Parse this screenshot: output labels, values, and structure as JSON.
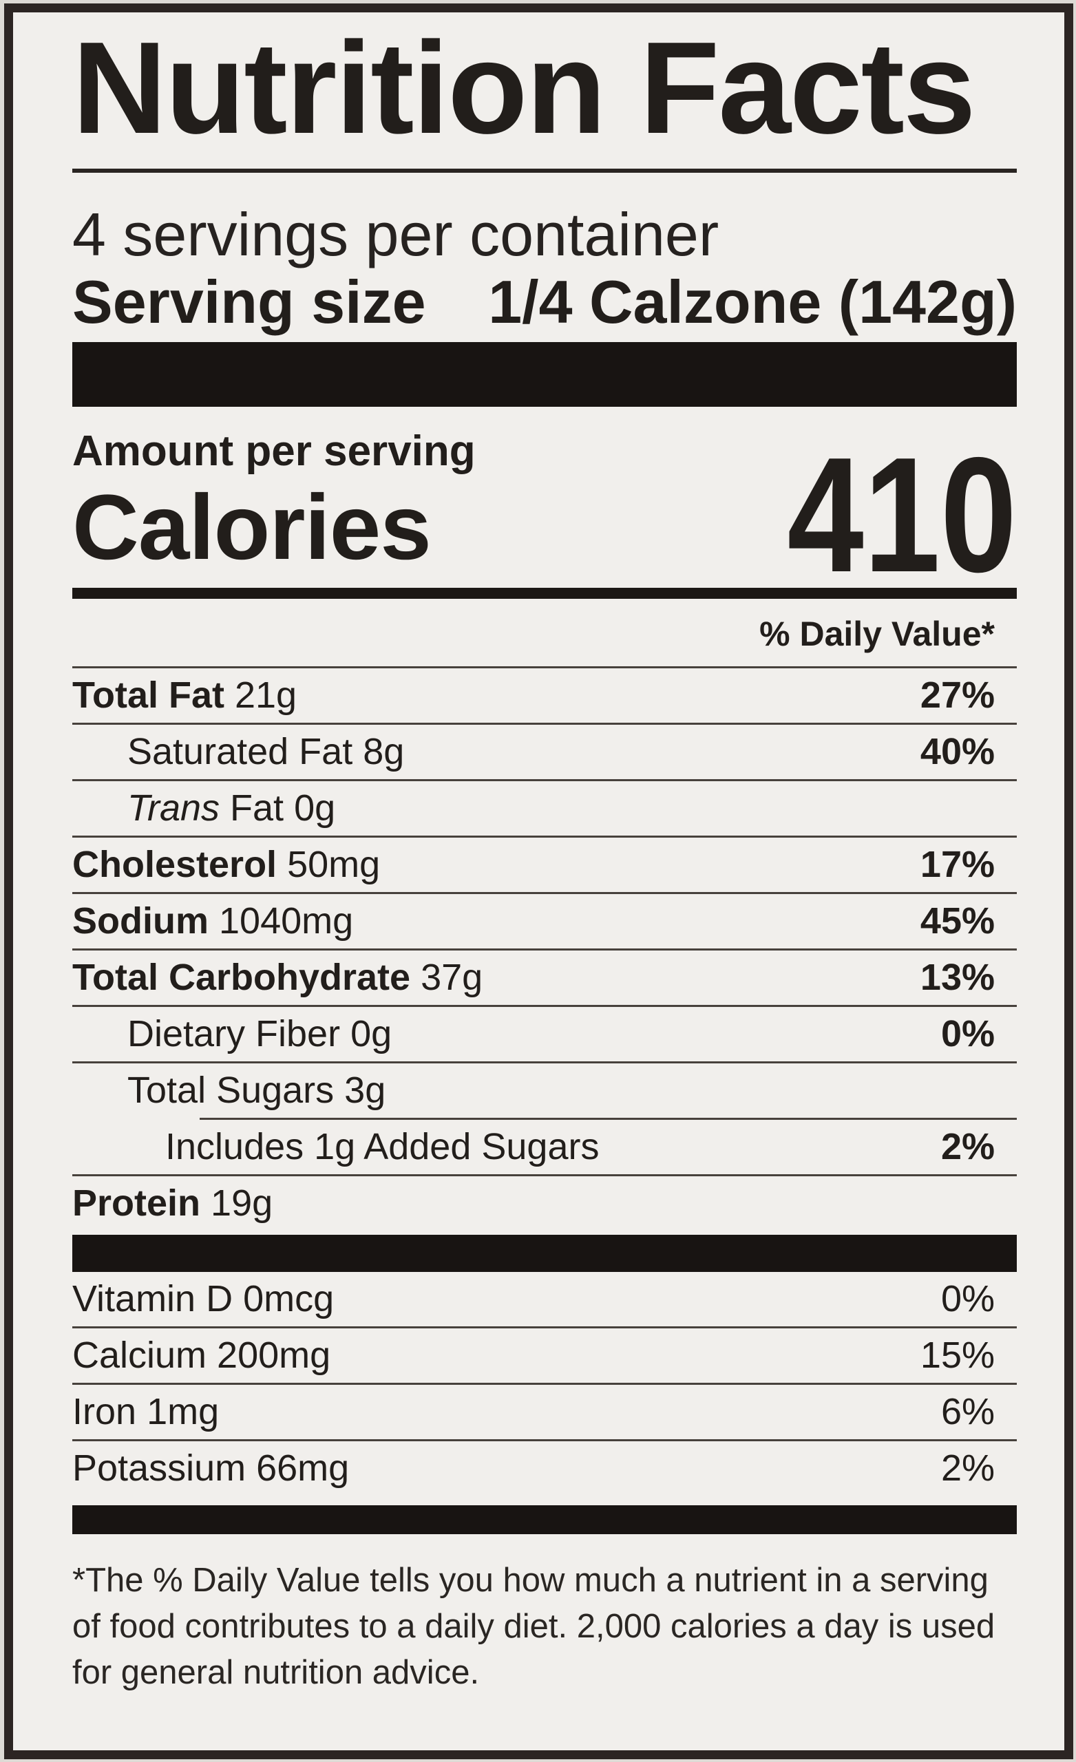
{
  "label": {
    "title": "Nutrition Facts",
    "servings_per_container": "4 servings per container",
    "serving_size_label": "Serving size",
    "serving_size_value": "1/4 Calzone (142g)",
    "amount_per_serving": "Amount per serving",
    "calories_label": "Calories",
    "calories_value": "410",
    "daily_value_header": "% Daily Value*",
    "nutrients": [
      {
        "name": "Total Fat",
        "amount": "21g",
        "dv": "27%",
        "style": "major",
        "level": 0
      },
      {
        "name": "Saturated Fat",
        "amount": "8g",
        "dv": "40%",
        "style": "sub",
        "level": 1
      },
      {
        "name": "Fat",
        "name_italic_prefix": "Trans",
        "amount": "0g",
        "dv": "",
        "style": "sub",
        "level": 1
      },
      {
        "name": "Cholesterol",
        "amount": "50mg",
        "dv": "17%",
        "style": "major",
        "level": 0
      },
      {
        "name": "Sodium",
        "amount": "1040mg",
        "dv": "45%",
        "style": "major",
        "level": 0
      },
      {
        "name": "Total Carbohydrate",
        "amount": "37g",
        "dv": "13%",
        "style": "major",
        "level": 0
      },
      {
        "name": "Dietary Fiber",
        "amount": "0g",
        "dv": "0%",
        "style": "sub",
        "level": 1
      },
      {
        "name": "Total Sugars",
        "amount": "3g",
        "dv": "",
        "style": "sub",
        "level": 1
      },
      {
        "name": "Includes 1g Added Sugars",
        "amount": "",
        "dv": "2%",
        "style": "sub",
        "level": 2,
        "rule_indent": true
      },
      {
        "name": "Protein",
        "amount": "19g",
        "dv": "",
        "style": "major",
        "level": 0
      }
    ],
    "micronutrients": [
      {
        "name": "Vitamin D",
        "amount": "0mcg",
        "dv": "0%"
      },
      {
        "name": "Calcium",
        "amount": "200mg",
        "dv": "15%"
      },
      {
        "name": "Iron",
        "amount": "1mg",
        "dv": "6%"
      },
      {
        "name": "Potassium",
        "amount": "66mg",
        "dv": "2%"
      }
    ],
    "footnote": "*The % Daily Value tells you how much a nutrient in a serving of food contributes to a daily diet. 2,000 calories a day is used for general nutrition advice."
  },
  "colors": {
    "label_background": "#f1efec",
    "frame_border": "#2c2523",
    "text": "#221e1b",
    "separator_bar": "#181412",
    "hairline": "#47413c"
  }
}
